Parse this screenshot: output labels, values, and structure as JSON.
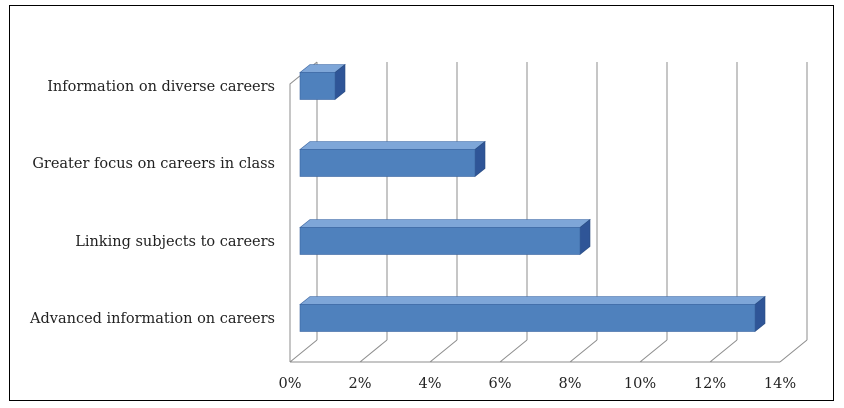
{
  "chart_data": {
    "type": "bar",
    "orientation": "horizontal",
    "style": "3d",
    "title": "",
    "xlabel": "",
    "ylabel": "",
    "categories": [
      "Information on diverse careers",
      "Greater focus on careers in class",
      "Linking subjects to careers",
      "Advanced information on careers"
    ],
    "values": [
      1,
      5,
      8,
      13
    ],
    "xlim": [
      0,
      14
    ],
    "ticks": [
      0,
      2,
      4,
      6,
      8,
      10,
      12,
      14
    ],
    "tick_labels": [
      "0%",
      "2%",
      "4%",
      "6%",
      "8%",
      "10%",
      "12%",
      "14%"
    ],
    "bar_color": "#4F81BD",
    "grid": true,
    "legend": "none"
  }
}
